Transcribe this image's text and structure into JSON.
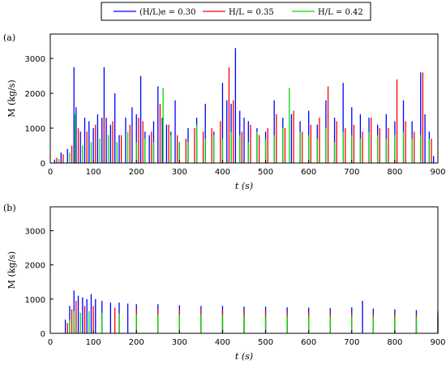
{
  "legend": {
    "items": [
      {
        "label": "(H/L)e = 0.30",
        "color": "#0000ff"
      },
      {
        "label": "H/L = 0.35",
        "color": "#ff0000"
      },
      {
        "label": "H/L = 0.42",
        "color": "#00dd00"
      }
    ]
  },
  "chart_data": [
    {
      "type": "bar",
      "panel_label": "(a)",
      "xlabel": "t (s)",
      "ylabel": "M (kg/s)",
      "xlim": [
        0,
        900
      ],
      "ylim": [
        0,
        3700
      ],
      "xticks": [
        0,
        100,
        200,
        300,
        400,
        500,
        600,
        700,
        800,
        900
      ],
      "yticks": [
        0,
        1000,
        2000,
        3000
      ],
      "grid": false,
      "note": "Dense spike trains; representative peak values per series.",
      "series": [
        {
          "name": "(H/L)e = 0.30",
          "color": "#0000ff",
          "x": [
            10,
            25,
            40,
            55,
            60,
            70,
            80,
            90,
            100,
            110,
            120,
            125,
            130,
            140,
            150,
            160,
            175,
            190,
            200,
            210,
            220,
            230,
            240,
            250,
            260,
            270,
            280,
            290,
            300,
            320,
            340,
            360,
            380,
            400,
            410,
            420,
            430,
            440,
            450,
            460,
            480,
            500,
            520,
            540,
            560,
            580,
            600,
            620,
            640,
            660,
            680,
            700,
            720,
            740,
            760,
            780,
            800,
            820,
            840,
            860,
            870,
            880,
            890
          ],
          "y": [
            100,
            300,
            400,
            2750,
            1600,
            900,
            1300,
            1200,
            1000,
            1400,
            1300,
            2750,
            1300,
            1100,
            2000,
            800,
            1300,
            1600,
            1400,
            2500,
            900,
            800,
            1200,
            2200,
            1300,
            1100,
            900,
            1800,
            600,
            1000,
            1300,
            1700,
            900,
            2300,
            1800,
            1700,
            3300,
            1500,
            1300,
            1200,
            1000,
            900,
            1800,
            1300,
            1400,
            1200,
            1500,
            1100,
            1800,
            1300,
            2300,
            1600,
            1400,
            1300,
            1100,
            1400,
            1200,
            1800,
            1200,
            2600,
            1400,
            900,
            200
          ]
        },
        {
          "name": "H/L = 0.35",
          "color": "#ff0000",
          "x": [
            15,
            30,
            50,
            65,
            85,
            105,
            125,
            145,
            165,
            185,
            205,
            215,
            235,
            255,
            275,
            295,
            315,
            335,
            355,
            375,
            395,
            415,
            425,
            445,
            465,
            485,
            505,
            525,
            545,
            565,
            585,
            605,
            625,
            645,
            665,
            685,
            705,
            725,
            745,
            765,
            785,
            805,
            825,
            845,
            865,
            885
          ],
          "y": [
            150,
            250,
            500,
            1000,
            900,
            1100,
            1300,
            1200,
            800,
            1100,
            1300,
            1200,
            900,
            1700,
            1100,
            800,
            700,
            1000,
            900,
            1000,
            1200,
            2750,
            1800,
            900,
            1100,
            800,
            1000,
            1400,
            1000,
            1500,
            900,
            1100,
            1300,
            2200,
            1200,
            1000,
            1100,
            900,
            1300,
            1000,
            1000,
            2400,
            1200,
            900,
            2600,
            700
          ]
        },
        {
          "name": "H/L = 0.42",
          "color": "#00dd00",
          "x": [
            20,
            45,
            58,
            75,
            95,
            115,
            135,
            155,
            180,
            200,
            220,
            240,
            262,
            280,
            300,
            320,
            340,
            360,
            380,
            400,
            420,
            440,
            460,
            480,
            500,
            520,
            540,
            555,
            580,
            600,
            620,
            640,
            660,
            680,
            700,
            720,
            740,
            760,
            780,
            800,
            820,
            840,
            860,
            880
          ],
          "y": [
            120,
            300,
            1400,
            500,
            600,
            700,
            800,
            600,
            900,
            600,
            700,
            600,
            2150,
            800,
            600,
            600,
            1100,
            700,
            800,
            700,
            900,
            800,
            600,
            900,
            700,
            800,
            1000,
            2150,
            900,
            800,
            700,
            1000,
            600,
            900,
            800,
            700,
            900,
            800,
            700,
            800,
            900,
            700,
            800,
            700
          ]
        }
      ]
    },
    {
      "type": "bar",
      "panel_label": "(b)",
      "xlabel": "t (s)",
      "ylabel": "M (kg/s)",
      "xlim": [
        0,
        900
      ],
      "ylim": [
        0,
        3700
      ],
      "xticks": [
        0,
        100,
        200,
        300,
        400,
        500,
        600,
        700,
        800,
        900
      ],
      "yticks": [
        0,
        1000,
        2000,
        3000
      ],
      "grid": false,
      "note": "Near-periodic spikes starting around t = 40 s; representative peak values.",
      "series": [
        {
          "name": "(H/L)e = 0.30",
          "color": "#0000ff",
          "x": [
            35,
            45,
            55,
            65,
            75,
            85,
            95,
            105,
            120,
            140,
            160,
            180,
            200,
            250,
            300,
            350,
            400,
            450,
            500,
            550,
            600,
            650,
            700,
            725,
            750,
            800,
            850,
            900
          ],
          "y": [
            400,
            800,
            1250,
            1100,
            1050,
            1000,
            1150,
            1000,
            950,
            900,
            900,
            870,
            850,
            850,
            820,
            800,
            800,
            780,
            780,
            760,
            750,
            740,
            760,
            950,
            720,
            700,
            680,
            650
          ]
        },
        {
          "name": "H/L = 0.35",
          "color": "#ff0000",
          "x": [
            40,
            50,
            60,
            80,
            100,
            150,
            200,
            250,
            300,
            350,
            400,
            450,
            500,
            550,
            600,
            650,
            700,
            750,
            800,
            850,
            900
          ],
          "y": [
            300,
            700,
            950,
            800,
            800,
            750,
            700,
            700,
            700,
            680,
            650,
            650,
            640,
            620,
            620,
            600,
            600,
            580,
            580,
            560,
            550
          ]
        },
        {
          "name": "H/L = 0.42",
          "color": "#00dd00",
          "x": [
            45,
            55,
            70,
            90,
            120,
            160,
            200,
            250,
            300,
            350,
            400,
            450,
            500,
            550,
            600,
            650,
            700,
            750,
            800,
            850,
            900
          ],
          "y": [
            400,
            650,
            600,
            650,
            600,
            580,
            560,
            550,
            560,
            540,
            540,
            530,
            520,
            520,
            510,
            500,
            500,
            490,
            480,
            470,
            460
          ]
        }
      ]
    }
  ]
}
